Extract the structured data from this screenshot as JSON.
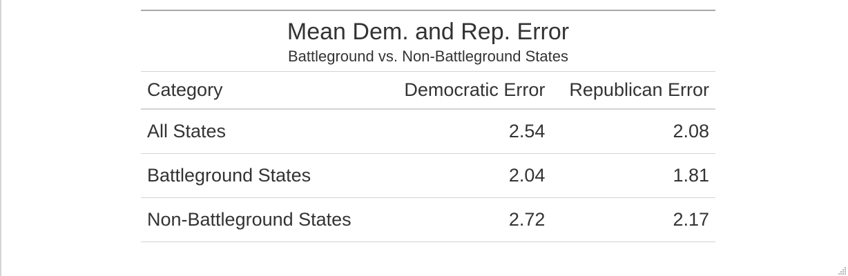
{
  "table": {
    "title": "Mean Dem. and Rep. Error",
    "subtitle": "Battleground vs. Non-Battleground States",
    "headers": {
      "category": "Category",
      "democratic": "Democratic Error",
      "republican": "Republican Error"
    },
    "rows": [
      {
        "category": "All States",
        "democratic": "2.54",
        "republican": "2.08"
      },
      {
        "category": "Battleground States",
        "democratic": "2.04",
        "republican": "1.81"
      },
      {
        "category": "Non-Battleground States",
        "democratic": "2.72",
        "republican": "2.17"
      }
    ]
  },
  "colors": {
    "text": "#333333",
    "rule": "#d3d3d3",
    "top_rule": "#a8a8a8"
  }
}
